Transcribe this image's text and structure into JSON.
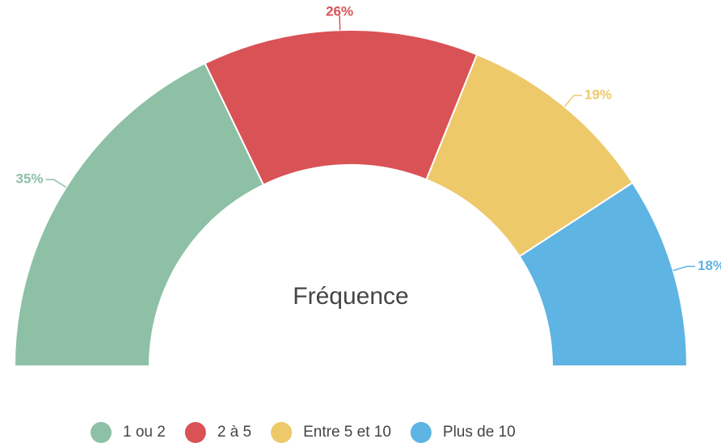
{
  "chart_data": {
    "type": "semi-donut",
    "title": "Fréquence",
    "categories": [
      "1 ou 2",
      "2 à 5",
      "Entre 5 et 10",
      "Plus de 10"
    ],
    "values": [
      35,
      26,
      19,
      18
    ],
    "value_labels": [
      "35%",
      "26%",
      "19%",
      "18%"
    ],
    "colors": [
      "#8dc0a5",
      "#d95256",
      "#eec96a",
      "#5eb4e3"
    ],
    "legend": "bottom"
  }
}
